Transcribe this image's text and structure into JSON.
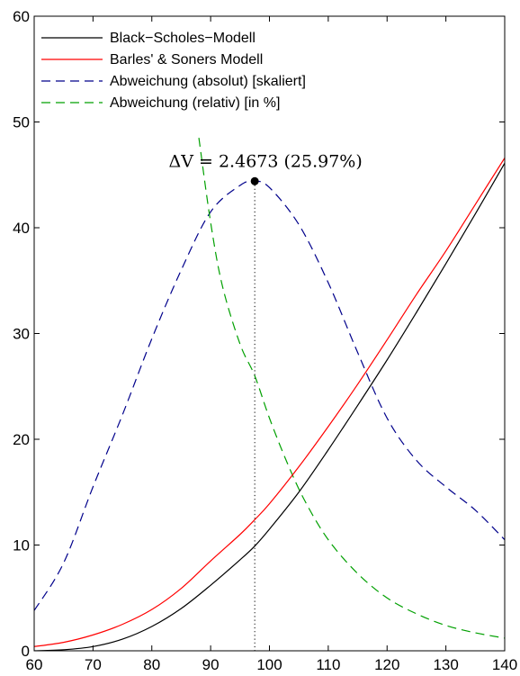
{
  "chart_data": {
    "type": "line",
    "title": "",
    "xlabel": "",
    "ylabel": "",
    "xlim": [
      60,
      140
    ],
    "ylim": [
      0,
      60
    ],
    "xticks": [
      60,
      70,
      80,
      90,
      100,
      110,
      120,
      130,
      140
    ],
    "yticks": [
      0,
      10,
      20,
      30,
      40,
      50,
      60
    ],
    "grid": false,
    "legend_position": "top-left",
    "series": [
      {
        "name": "Black−Scholes−Modell",
        "color": "#000000",
        "style": "solid",
        "x": [
          60,
          65,
          70,
          75,
          80,
          85,
          90,
          95,
          97.5,
          100,
          105,
          110,
          115,
          120,
          125,
          130,
          135,
          140
        ],
        "y": [
          0.0,
          0.1,
          0.4,
          1.1,
          2.3,
          4.0,
          6.2,
          8.6,
          9.9,
          11.5,
          15.0,
          19.0,
          23.2,
          27.5,
          32.0,
          36.6,
          41.3,
          46.1
        ]
      },
      {
        "name": "Barles' & Soners Modell",
        "color": "#ff0000",
        "style": "solid",
        "x": [
          60,
          65,
          70,
          75,
          80,
          85,
          90,
          95,
          97.5,
          100,
          105,
          110,
          115,
          120,
          125,
          130,
          135,
          140
        ],
        "y": [
          0.4,
          0.8,
          1.5,
          2.5,
          3.9,
          5.9,
          8.5,
          11.0,
          12.4,
          13.9,
          17.4,
          21.2,
          25.2,
          29.4,
          33.7,
          37.8,
          42.2,
          46.6
        ]
      },
      {
        "name": "Abweichung (absolut) [skaliert]",
        "color": "#00008b",
        "style": "dashed",
        "x": [
          60,
          65,
          70,
          75,
          80,
          85,
          90,
          95,
          97.5,
          100,
          105,
          110,
          115,
          120,
          125,
          130,
          135,
          140
        ],
        "y": [
          3.8,
          8.3,
          15.5,
          22.3,
          29.5,
          36.0,
          41.5,
          44.0,
          44.4,
          43.8,
          40.3,
          34.8,
          28.2,
          22.0,
          18.0,
          15.5,
          13.3,
          10.5
        ]
      },
      {
        "name": "Abweichung (relativ) [in %]",
        "color": "#00a000",
        "style": "dashed",
        "x": [
          88,
          90,
          92,
          95,
          97.5,
          100,
          103,
          106,
          110,
          115,
          120,
          125,
          130,
          135,
          140
        ],
        "y": [
          48.5,
          40.5,
          34.5,
          29.0,
          26.0,
          22.0,
          17.8,
          14.2,
          10.5,
          7.3,
          5.0,
          3.5,
          2.4,
          1.7,
          1.2
        ]
      }
    ],
    "annotations": [
      {
        "text": "ΔV = 2.4673 (25.97%)",
        "x": 97.5,
        "y": 44.4
      }
    ]
  }
}
